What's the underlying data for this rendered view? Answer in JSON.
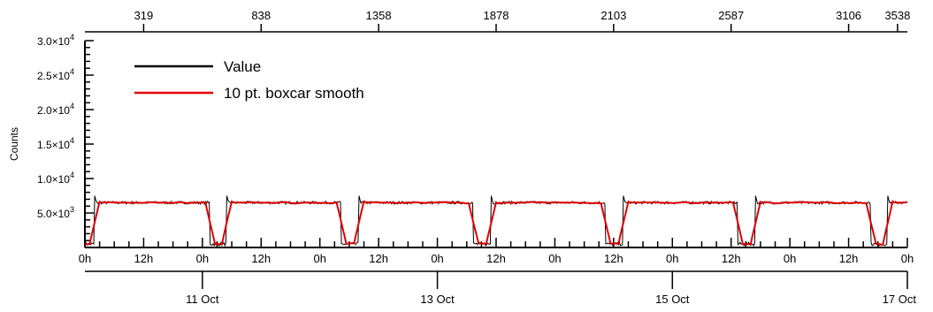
{
  "chart_data": {
    "type": "line",
    "ylabel": "Counts",
    "xlabel": "",
    "ylim": [
      0,
      30000
    ],
    "y_ticks": [
      {
        "value": 5000,
        "label": "5.0×10",
        "exp": "3"
      },
      {
        "value": 10000,
        "label": "1.0×10",
        "exp": "4"
      },
      {
        "value": 15000,
        "label": "1.5×10",
        "exp": "4"
      },
      {
        "value": 20000,
        "label": "2.0×10",
        "exp": "4"
      },
      {
        "value": 25000,
        "label": "2.5×10",
        "exp": "4"
      },
      {
        "value": 30000,
        "label": "3.0×10",
        "exp": "4"
      }
    ],
    "x_range_hours": [
      0,
      168
    ],
    "hour_ticks": [
      {
        "hour": 0,
        "label": "0h"
      },
      {
        "hour": 12,
        "label": "12h"
      },
      {
        "hour": 24,
        "label": "0h"
      },
      {
        "hour": 36,
        "label": "12h"
      },
      {
        "hour": 48,
        "label": "0h"
      },
      {
        "hour": 60,
        "label": "12h"
      },
      {
        "hour": 72,
        "label": "0h"
      },
      {
        "hour": 84,
        "label": "12h"
      },
      {
        "hour": 96,
        "label": "0h"
      },
      {
        "hour": 108,
        "label": "12h"
      },
      {
        "hour": 120,
        "label": "0h"
      },
      {
        "hour": 132,
        "label": "12h"
      },
      {
        "hour": 144,
        "label": "0h"
      },
      {
        "hour": 156,
        "label": "12h"
      },
      {
        "hour": 168,
        "label": "0h"
      }
    ],
    "date_ticks": [
      {
        "hour": 24,
        "label": "11 Oct"
      },
      {
        "hour": 72,
        "label": "13 Oct"
      },
      {
        "hour": 120,
        "label": "15 Oct"
      },
      {
        "hour": 168,
        "label": "17 Oct"
      }
    ],
    "top_ticks": [
      {
        "hour": 12,
        "label": "319"
      },
      {
        "hour": 36,
        "label": "838"
      },
      {
        "hour": 60,
        "label": "1358"
      },
      {
        "hour": 84,
        "label": "1878"
      },
      {
        "hour": 108,
        "label": "2103"
      },
      {
        "hour": 132,
        "label": "2587"
      },
      {
        "hour": 156,
        "label": "3106"
      },
      {
        "hour": 166,
        "label": "3538"
      }
    ],
    "legend": {
      "placement": "top-left",
      "entries": [
        {
          "name": "Value",
          "color": "#000000"
        },
        {
          "name": "10 pt. boxcar smooth",
          "color": "#e00000"
        }
      ]
    },
    "plateau_level": 6500,
    "low_level": 500,
    "dips": [
      {
        "start": 0,
        "end": 2
      },
      {
        "start": 25.4,
        "end": 29
      },
      {
        "start": 52.4,
        "end": 56
      },
      {
        "start": 79.4,
        "end": 83
      },
      {
        "start": 106.4,
        "end": 110
      },
      {
        "start": 133.4,
        "end": 137
      },
      {
        "start": 160.4,
        "end": 164
      }
    ],
    "spike_level": 7500
  }
}
